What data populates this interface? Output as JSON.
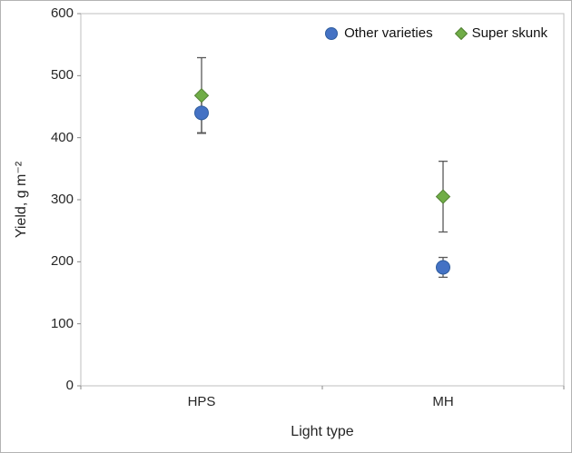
{
  "chart_data": {
    "type": "scatter",
    "title": "",
    "xlabel": "Light type",
    "ylabel": "Yield, g m⁻²",
    "categories": [
      "HPS",
      "MH"
    ],
    "series": [
      {
        "name": "Other varieties",
        "marker": "circle",
        "color": "#4472C4",
        "edge_color": "#2f5d9e",
        "values": [
          440,
          191
        ],
        "error": [
          32,
          16
        ]
      },
      {
        "name": "Super skunk",
        "marker": "diamond",
        "color": "#70AD47",
        "edge_color": "#538135",
        "values": [
          468,
          305
        ],
        "error": [
          61,
          57
        ]
      }
    ],
    "ylim": [
      0,
      600
    ],
    "yticks": [
      0,
      100,
      200,
      300,
      400,
      500,
      600
    ],
    "grid": false,
    "legend_position": "top-right-inside",
    "error_bar_color": "#595959",
    "frame_color": "#bfbfbf"
  }
}
